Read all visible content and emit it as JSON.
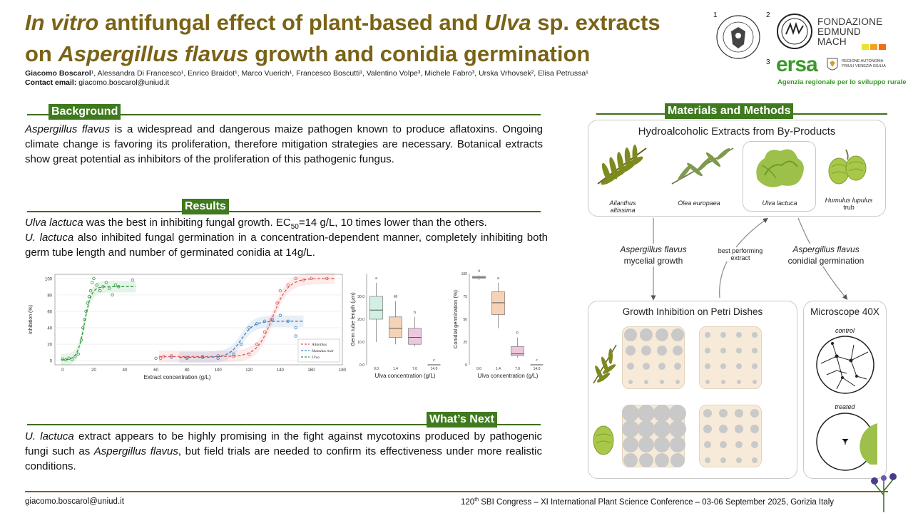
{
  "title": {
    "line1_a": "In vitro",
    "line1_b": " antifungal effect of plant-based and ",
    "line1_c": "Ulva",
    "line1_d": " sp. extracts",
    "line2_a": "on ",
    "line2_b": "Aspergillus flavus",
    "line2_c": " growth and conidia germination"
  },
  "authors": {
    "lead": "Giacomo Boscarol",
    "rest": "¹, Alessandra Di Francesco¹, Enrico Braidot¹, Marco Vuerich¹, Francesco Boscutti¹, Valentino Volpe³, Michele Fabro³, Urska Vrhovsek², Elisa Petrussa¹"
  },
  "contact": {
    "label": "Contact email:",
    "email": "giacomo.boscarol@uniud.it"
  },
  "affiliations": {
    "n1": "1",
    "n2": "2",
    "n3": "3",
    "fem_line1": "FONDAZIONE",
    "fem_line2": "EDMUND",
    "fem_line3": "MACH",
    "ersa_name": "ersa",
    "ersa_region1": "REGIONE AUTONOMA",
    "ersa_region2": "FRIULI VENEZIA GIULIA",
    "ersa_tagline": "Agenzia regionale per lo sviluppo rurale",
    "seal_text": "UNIVERSITAS STUDIORUM UTINENSIS"
  },
  "background": {
    "tag": "Background",
    "text_i": "Aspergillus flavus",
    "text": " is a widespread and dangerous maize pathogen known to produce aflatoxins. Ongoing climate change is favoring its proliferation, therefore mitigation strategies are necessary. Botanical extracts show great potential as inhibitors of the proliferation of this pathogenic fungus."
  },
  "results": {
    "tag": "Results",
    "p1_i": "Ulva lactuca",
    "p1_a": " was the best in inhibiting fungal growth. EC",
    "p1_sub": "50",
    "p1_b": "=14 g/L, 10 times lower than the others.",
    "p2_i": "U. lactuca",
    "p2": " also inhibited fungal germination in a concentration-dependent manner, completely inhibiting both germ tube length and number of germinated conidia at 14g/L."
  },
  "whats_next": {
    "tag": "What’s Next",
    "t_i1": "U. lactuca",
    "t_a": " extract appears to be highly promising in the fight against mycotoxins produced by pathogenic fungi such as ",
    "t_i2": "Aspergillus flavus",
    "t_b": ", but field trials are needed to confirm its effectiveness under more realistic conditions."
  },
  "methods": {
    "tag": "Materials and Methods",
    "extracts_title": "Hydroalcoholic Extracts from By-Products",
    "plants": [
      "Ailanthus altissima",
      "Olea europaea",
      "Ulva lactuca",
      "Humulus lupulus"
    ],
    "plant4_sub": "trub",
    "flow_left_i": "Aspergillus flavus",
    "flow_left": "mycelial growth",
    "flow_mid1": "best performing",
    "flow_mid2": "extract",
    "flow_right_i": "Aspergillus flavus",
    "flow_right": "conidial germination",
    "petri_title": "Growth Inhibition on Petri Dishes",
    "micro_title": "Microscope 40X",
    "control": "control",
    "treated": "treated"
  },
  "chart_data": [
    {
      "type": "scatter",
      "xlabel": "Extract concentration (g/L)",
      "ylabel": "Inhibition (%)",
      "xlim": [
        -5,
        180
      ],
      "ylim": [
        -5,
        105
      ],
      "xticks": [
        "0",
        "20",
        "40",
        "60",
        "80",
        "100",
        "120",
        "140",
        "160",
        "180"
      ],
      "yticks": [
        "0",
        "20",
        "40",
        "60",
        "80",
        "100"
      ],
      "legend_position": "bottom-right",
      "colors": {
        "Ailanthus": "#e8585a",
        "Humulus trub": "#3f7fbf",
        "Ulva": "#2e9a3e"
      },
      "series": [
        {
          "name": "Ailanthus",
          "style": "dashed-fit",
          "points": [
            [
              63,
              3
            ],
            [
              65,
              5
            ],
            [
              70,
              6
            ],
            [
              80,
              4
            ],
            [
              90,
              5
            ],
            [
              100,
              6
            ],
            [
              110,
              5
            ],
            [
              120,
              8
            ],
            [
              125,
              20
            ],
            [
              130,
              35
            ],
            [
              134,
              50
            ],
            [
              138,
              70
            ],
            [
              140,
              85
            ],
            [
              145,
              92
            ],
            [
              150,
              100
            ],
            [
              155,
              98
            ],
            [
              160,
              100
            ],
            [
              170,
              100
            ]
          ],
          "curve": {
            "x0": 135,
            "k": 0.2,
            "low": 5,
            "high": 100,
            "xmin": 62,
            "xmax": 175
          }
        },
        {
          "name": "Humulus trub",
          "style": "dashed-fit",
          "points": [
            [
              60,
              3
            ],
            [
              70,
              4
            ],
            [
              80,
              3
            ],
            [
              90,
              4
            ],
            [
              100,
              3
            ],
            [
              110,
              8
            ],
            [
              115,
              20
            ],
            [
              120,
              40
            ],
            [
              125,
              45
            ],
            [
              130,
              48
            ],
            [
              135,
              50
            ],
            [
              140,
              55
            ],
            [
              145,
              48
            ],
            [
              150,
              40
            ],
            [
              150,
              30
            ]
          ],
          "curve": {
            "x0": 115,
            "k": 0.25,
            "low": 4,
            "high": 48,
            "xmin": 75,
            "xmax": 155
          }
        },
        {
          "name": "Ulva",
          "style": "dashed-fit",
          "points": [
            [
              0,
              2
            ],
            [
              2,
              1
            ],
            [
              4,
              3
            ],
            [
              6,
              2
            ],
            [
              8,
              5
            ],
            [
              10,
              8
            ],
            [
              12,
              25
            ],
            [
              13,
              40
            ],
            [
              14,
              50
            ],
            [
              15,
              60
            ],
            [
              16,
              70
            ],
            [
              17,
              78
            ],
            [
              18,
              85
            ],
            [
              19,
              95
            ],
            [
              20,
              100
            ],
            [
              22,
              92
            ],
            [
              24,
              85
            ],
            [
              26,
              90
            ],
            [
              28,
              95
            ],
            [
              30,
              88
            ],
            [
              32,
              80
            ],
            [
              34,
              92
            ],
            [
              36,
              90
            ],
            [
              45,
              98
            ]
          ],
          "curve": {
            "x0": 14,
            "k": 0.45,
            "low": 1,
            "high": 90,
            "xmin": -1,
            "xmax": 47
          }
        }
      ]
    },
    {
      "type": "box",
      "xlabel": "Ulva concentration (g/L)",
      "ylabel": "Germ tube length (µm)",
      "categories": [
        "0.0",
        "1.4",
        "7.0",
        "14.0"
      ],
      "letters": [
        "a",
        "ab",
        "b",
        "c"
      ],
      "ylim": [
        0,
        40
      ],
      "yticks": [
        "0.0",
        "10.0",
        "20.0",
        "30.0"
      ],
      "boxes": [
        {
          "min": 10,
          "q1": 20,
          "median": 24,
          "q3": 30,
          "max": 36
        },
        {
          "min": 9,
          "q1": 12,
          "median": 16,
          "q3": 21,
          "max": 28
        },
        {
          "min": 8,
          "q1": 9,
          "median": 12,
          "q3": 16,
          "max": 21
        },
        {
          "min": 0,
          "q1": 0,
          "median": 0,
          "q3": 0,
          "max": 0
        }
      ],
      "colors": [
        "#d3efe3",
        "#f6d3b6",
        "#ecc8dd",
        "#ffffff"
      ]
    },
    {
      "type": "box",
      "xlabel": "Ulva concentration (g/L)",
      "ylabel": "Conidial germination (%)",
      "categories": [
        "0.0",
        "1.4",
        "7.0",
        "14.0"
      ],
      "letters": [
        "a",
        "a",
        "b",
        "c"
      ],
      "ylim": [
        0,
        100
      ],
      "yticks": [
        "0",
        "25",
        "50",
        "75",
        "100"
      ],
      "boxes": [
        {
          "min": 93,
          "q1": 95,
          "median": 96,
          "q3": 97,
          "max": 98
        },
        {
          "min": 40,
          "q1": 55,
          "median": 68,
          "q3": 80,
          "max": 90
        },
        {
          "min": 8,
          "q1": 10,
          "median": 12,
          "q3": 20,
          "max": 30
        },
        {
          "min": 0,
          "q1": 0,
          "median": 0,
          "q3": 0,
          "max": 0
        }
      ],
      "colors": [
        "#d3efe3",
        "#f6d3b6",
        "#ecc8dd",
        "#ffffff"
      ]
    }
  ],
  "footer": {
    "email": "giacomo.boscarol@uniud.it",
    "conf_sup": "th",
    "conf_num": "120",
    "conf_text": " SBI Congress – XI International Plant Science Conference – 03-06 September 2025, Gorizia Italy"
  }
}
